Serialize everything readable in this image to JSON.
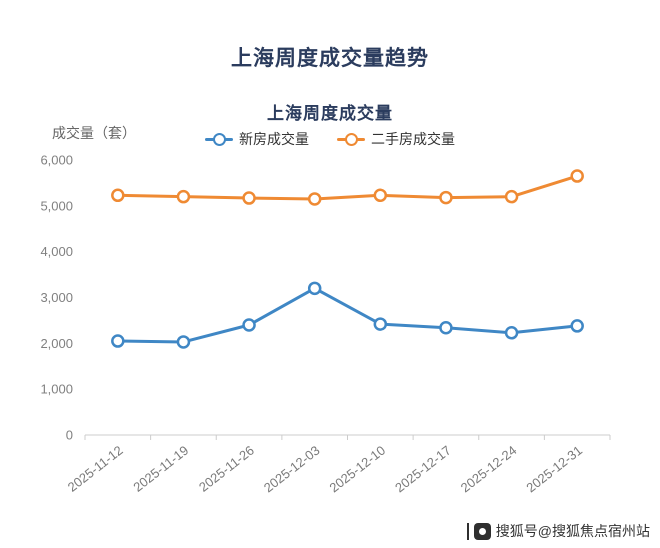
{
  "page": {
    "title": "上海周度成交量趋势",
    "watermark": {
      "text": "搜狐号@搜狐焦点宿州站"
    }
  },
  "chart_data": {
    "type": "line",
    "title": "上海周度成交量",
    "ylabel": "成交量（套）",
    "categories": [
      "2025-11-12",
      "2025-11-19",
      "2025-11-26",
      "2025-12-03",
      "2025-12-10",
      "2025-12-17",
      "2025-12-24",
      "2025-12-31"
    ],
    "series": [
      {
        "name": "新房成交量",
        "color": "#3f87c5",
        "values": [
          2050,
          2030,
          2400,
          3200,
          2420,
          2340,
          2230,
          2380
        ]
      },
      {
        "name": "二手房成交量",
        "color": "#ef8a33",
        "values": [
          5230,
          5200,
          5170,
          5150,
          5230,
          5180,
          5200,
          5650
        ]
      }
    ],
    "ylim": [
      0,
      6000
    ],
    "ytick_step": 1000,
    "legend_position": "top",
    "grid": false,
    "marker": "hollow-circle"
  }
}
